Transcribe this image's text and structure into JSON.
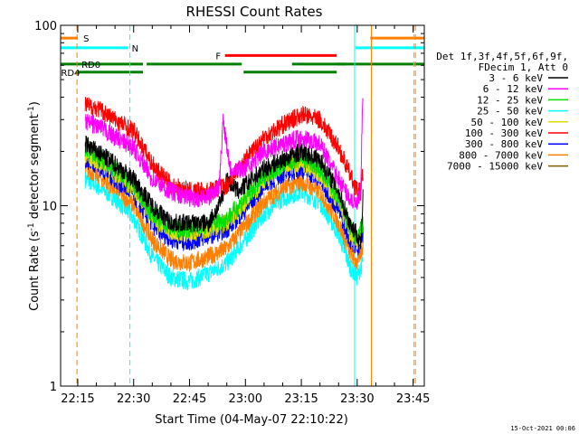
{
  "chart_data": {
    "type": "line",
    "title": "RHESSI Count Rates",
    "xlabel": "Start Time (04-May-07 22:10:22)",
    "ylabel": "Count Rate (s⁻¹ detector segment⁻¹)",
    "ylabel_main": "Count Rate (s",
    "ylabel_mid": " detector segment",
    "ylabel_end": ")",
    "ylabel_sup": "-1",
    "yscale": "log",
    "xlim_min": [
      10.4,
      108
    ],
    "ylim": [
      1,
      100
    ],
    "x_ticks": [
      {
        "label": "22:15",
        "minutes": 15
      },
      {
        "label": "22:30",
        "minutes": 30
      },
      {
        "label": "22:45",
        "minutes": 45
      },
      {
        "label": "23:00",
        "minutes": 60
      },
      {
        "label": "23:15",
        "minutes": 75
      },
      {
        "label": "23:30",
        "minutes": 90
      },
      {
        "label": "23:45",
        "minutes": 105
      }
    ],
    "y_ticks": [
      {
        "label": "1",
        "value": 1
      },
      {
        "label": "10",
        "value": 10
      },
      {
        "label": "100",
        "value": 100
      }
    ],
    "grid": false,
    "legend": {
      "placement": "right",
      "header": [
        "Det 1f,3f,4f,5f,6f,9f,",
        "FDecim 1, Att 0"
      ],
      "entries": [
        {
          "name": "3 - 6 keV",
          "color": "#000000"
        },
        {
          "name": "6 - 12 keV",
          "color": "#ff00ff"
        },
        {
          "name": "12 - 25 keV",
          "color": "#00dd00"
        },
        {
          "name": "25 - 50 keV",
          "color": "#00ffff"
        },
        {
          "name": "50 - 100 keV",
          "color": "#dddd00"
        },
        {
          "name": "100 - 300 keV",
          "color": "#ff0000"
        },
        {
          "name": "300 - 800 keV",
          "color": "#0000ff"
        },
        {
          "name": "800 - 7000 keV",
          "color": "#ff8000"
        },
        {
          "name": "7000 - 15000 keV",
          "color": "#806000"
        }
      ]
    },
    "flags": [
      {
        "label": "S",
        "color": "#ff8000",
        "segments": [
          [
            10.4,
            15
          ],
          [
            93.5,
            108
          ]
        ],
        "level": 85,
        "show_label": true,
        "label_x": 16.5
      },
      {
        "label": "N",
        "color": "#00ffff",
        "segments": [
          [
            10.4,
            28.5
          ],
          [
            89.5,
            108
          ]
        ],
        "level": 75,
        "show_label": true,
        "label_x": 29.5
      },
      {
        "label": "F",
        "color": "#ff0000",
        "segments": [
          [
            54.5,
            84.5
          ]
        ],
        "level": 68,
        "show_label": true,
        "label_x": 52
      },
      {
        "label": "RD0",
        "color": "#008000",
        "segments": [
          [
            10.4,
            32.5
          ],
          [
            72.5,
            87
          ],
          [
            33.5,
            59
          ],
          [
            84.5,
            108
          ]
        ],
        "level": 61,
        "show_label": true,
        "label_x": 16
      },
      {
        "label": "RD4",
        "color": "#008000",
        "segments": [
          [
            14.5,
            32.5
          ],
          [
            59.5,
            84.5
          ]
        ],
        "level": 55,
        "show_label": true,
        "label_x": 10.5
      }
    ],
    "vlines": [
      {
        "minutes": 14.8,
        "color": "#ff8000",
        "style": "dashed"
      },
      {
        "minutes": 29.0,
        "color": "#00ffff",
        "style": "dashed"
      },
      {
        "minutes": 89.3,
        "color": "#00ffff",
        "style": "solid"
      },
      {
        "minutes": 93.8,
        "color": "#ff8000",
        "style": "solid"
      },
      {
        "minutes": 105.6,
        "color": "#ff8000",
        "style": "dashed"
      },
      {
        "minutes": 105.2,
        "color": "#00ffff",
        "style": "dashed"
      }
    ],
    "series": [
      {
        "name": "6 - 12 keV",
        "color": "#ff00ff",
        "x": [
          17,
          20,
          25,
          30,
          35,
          40,
          45,
          50,
          53,
          54,
          56,
          60,
          65,
          70,
          75,
          80,
          85,
          88,
          90,
          91,
          91.3,
          91.6
        ],
        "y": [
          29,
          28,
          24,
          21,
          14,
          12,
          11,
          11,
          13,
          30,
          16,
          16,
          20,
          22,
          24,
          22,
          14,
          11,
          10,
          12,
          30,
          44
        ]
      },
      {
        "name": "100 - 300 keV",
        "color": "#ff0000",
        "x": [
          17,
          20,
          25,
          30,
          35,
          40,
          45,
          50,
          55,
          60,
          65,
          70,
          75,
          80,
          85,
          88,
          90,
          91,
          91.6
        ],
        "y": [
          36,
          35,
          30,
          26,
          17,
          13,
          12,
          12,
          13,
          18,
          24,
          28,
          32,
          30,
          21,
          15,
          12,
          12,
          16
        ]
      },
      {
        "name": "3 - 6 keV",
        "color": "#000000",
        "x": [
          17,
          20,
          25,
          30,
          35,
          40,
          45,
          50,
          53,
          55,
          58,
          60,
          65,
          70,
          75,
          80,
          85,
          88,
          90,
          91,
          91.6
        ],
        "y": [
          22,
          20,
          17,
          14,
          10,
          8,
          8,
          8,
          10,
          14,
          12,
          13,
          16,
          18,
          20,
          18,
          12,
          8,
          7,
          6,
          12
        ]
      },
      {
        "name": "12 - 25 keV",
        "color": "#00dd00",
        "x": [
          17,
          20,
          25,
          30,
          35,
          40,
          45,
          50,
          55,
          60,
          65,
          70,
          75,
          80,
          85,
          88,
          90,
          91.6
        ],
        "y": [
          21,
          19,
          16,
          13,
          9,
          7.5,
          7.5,
          7.8,
          8.5,
          11,
          14.5,
          17,
          18.5,
          16,
          11,
          7.5,
          6.5,
          8
        ]
      },
      {
        "name": "50 - 100 keV",
        "color": "#dddd00",
        "x": [
          17,
          20,
          25,
          30,
          35,
          40,
          45,
          50,
          55,
          60,
          65,
          70,
          75,
          80,
          85,
          88,
          90,
          91.6
        ],
        "y": [
          19,
          18,
          15,
          12.5,
          8.5,
          7.2,
          7,
          7.4,
          8,
          10.5,
          14,
          16,
          17.5,
          15,
          10.5,
          7,
          6.2,
          7.5
        ]
      },
      {
        "name": "300 - 800 keV",
        "color": "#0000ff",
        "x": [
          17,
          20,
          25,
          30,
          35,
          40,
          45,
          50,
          55,
          60,
          65,
          70,
          75,
          80,
          85,
          88,
          90,
          91.6
        ],
        "y": [
          18,
          17,
          14,
          11.5,
          7.8,
          6.5,
          6.3,
          6.8,
          7.4,
          9.5,
          13,
          15,
          16,
          14,
          9.5,
          6.5,
          5.8,
          7
        ]
      },
      {
        "name": "800 - 7000 keV",
        "color": "#ff8000",
        "x": [
          17,
          20,
          25,
          30,
          35,
          40,
          45,
          50,
          55,
          60,
          65,
          70,
          75,
          80,
          85,
          88,
          90,
          91.6
        ],
        "y": [
          16,
          15,
          12.5,
          10,
          6.5,
          5,
          4.8,
          5.2,
          5.8,
          7.8,
          10.5,
          12.5,
          13.5,
          12,
          8,
          5.5,
          4.8,
          6
        ]
      },
      {
        "name": "25 - 50 keV",
        "color": "#00ffff",
        "x": [
          17,
          20,
          25,
          30,
          35,
          40,
          45,
          50,
          55,
          60,
          65,
          70,
          75,
          80,
          85,
          88,
          90,
          91.6
        ],
        "y": [
          14,
          13,
          11,
          8.5,
          5.2,
          4,
          3.8,
          4.2,
          4.8,
          6.5,
          9,
          11,
          12,
          10.5,
          7,
          4.6,
          4,
          5
        ]
      }
    ]
  },
  "footer": {
    "date_stamp": "15-Oct-2021 00:06"
  }
}
